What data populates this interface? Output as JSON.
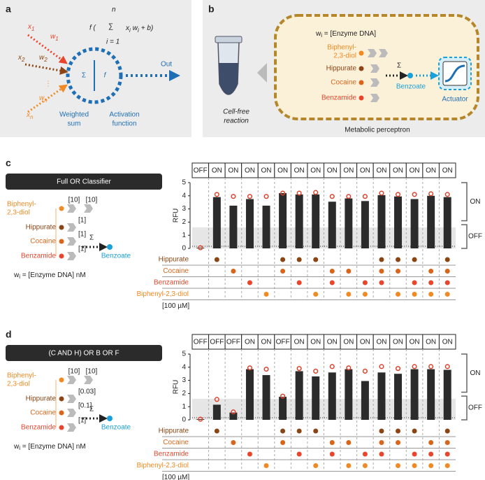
{
  "panel_a": {
    "label": "a",
    "formula": {
      "f": "f (",
      "sigma": "∑",
      "upper": "n",
      "lower": "i = 1",
      "x": "x",
      "xi": "i",
      "w": "w",
      "wi": "i",
      "tail": "+ b)"
    },
    "inputs": [
      {
        "x": "x",
        "xi": "1",
        "w": "w",
        "wi": "1"
      },
      {
        "x": "x",
        "xi": "2",
        "w": "w",
        "wi": "2"
      },
      {
        "x": "x",
        "xi": "n",
        "w": "w",
        "wi": "n"
      }
    ],
    "ellipsis": "⋮",
    "sigma": "Σ",
    "f": "f",
    "weighted_sum": [
      "Weighted",
      "sum"
    ],
    "activation": [
      "Activation",
      "function"
    ],
    "out": "Out"
  },
  "panel_b": {
    "label": "b",
    "weight_eq": {
      "w": "w",
      "sub": "i",
      "rest": " = [Enzyme DNA]"
    },
    "substrates": [
      [
        "Biphenyl-",
        "2,3-diol"
      ],
      [
        "Hippurate"
      ],
      [
        "Cocaine"
      ],
      [
        "Benzamide"
      ]
    ],
    "sigma": "Σ",
    "product": "Benzoate",
    "actuator": "Actuator",
    "reaction": [
      "Cell-free",
      "reaction"
    ],
    "caption": "Metabolic perceptron"
  },
  "panel_c_diagram": {
    "label": "c",
    "title": "Full OR Classifier",
    "substrates": [
      [
        "Biphenyl-",
        "2,3-diol"
      ],
      [
        "Hippurate"
      ],
      [
        "Cocaine"
      ],
      [
        "Benzamide"
      ]
    ],
    "weights": [
      "[10]",
      "[10]",
      "[1]",
      "[1]",
      "[1]"
    ],
    "sigma": "Σ",
    "product": "Benzoate",
    "weight_eq": {
      "w": "w",
      "sub": "i",
      "rest": " = [Enzyme DNA] nM"
    }
  },
  "panel_d_diagram": {
    "label": "d",
    "title": "(C AND H) OR B OR F",
    "substrates": [
      [
        "Biphenyl-",
        "2,3-diol"
      ],
      [
        "Hippurate"
      ],
      [
        "Cocaine"
      ],
      [
        "Benzamide"
      ]
    ],
    "weights": [
      "[10]",
      "[10]",
      "[0.03]",
      "[0.1]",
      "[1]"
    ],
    "sigma": "Σ",
    "product": "Benzoate",
    "weight_eq": {
      "w": "w",
      "sub": "i",
      "rest": " = [Enzyme DNA] nM"
    }
  },
  "chart_data": [
    {
      "type": "bar",
      "ylabel": "RFU",
      "ylim": [
        0,
        5
      ],
      "yticks": [
        0,
        1,
        2,
        3,
        4,
        5
      ],
      "color": "#2b2b2b",
      "predicted_color": "#e0402a",
      "categories": [
        "OFF",
        "ON",
        "ON",
        "ON",
        "ON",
        "ON",
        "ON",
        "ON",
        "ON",
        "ON",
        "ON",
        "ON",
        "ON",
        "ON",
        "ON",
        "ON"
      ],
      "values": [
        0.05,
        3.9,
        3.25,
        3.75,
        3.25,
        4.2,
        4.1,
        4.1,
        3.55,
        3.8,
        3.6,
        4.05,
        3.95,
        3.75,
        4.0,
        3.9
      ],
      "predicted_values": [
        0.05,
        4.1,
        3.95,
        3.95,
        3.95,
        4.2,
        4.2,
        4.25,
        3.95,
        3.95,
        3.95,
        4.2,
        4.1,
        4.1,
        4.15,
        4.1
      ],
      "input_labels": [
        "Hippurate",
        "Cocaine",
        "Benzamide",
        "Biphenyl-2,3-diol"
      ],
      "input_colors": [
        "#8b4513",
        "#d9651a",
        "#e8452c",
        "#f08a24"
      ],
      "inputs": [
        [
          false,
          true,
          false,
          false,
          false,
          true,
          true,
          true,
          false,
          false,
          false,
          true,
          true,
          true,
          false,
          true
        ],
        [
          false,
          false,
          true,
          false,
          false,
          true,
          false,
          false,
          true,
          true,
          false,
          true,
          true,
          false,
          true,
          true
        ],
        [
          false,
          false,
          false,
          true,
          false,
          false,
          true,
          false,
          true,
          false,
          true,
          true,
          false,
          true,
          true,
          true
        ],
        [
          false,
          false,
          false,
          false,
          true,
          false,
          false,
          true,
          false,
          true,
          true,
          false,
          true,
          true,
          true,
          true
        ]
      ],
      "concentration": "[100 µM]",
      "bracket_labels": [
        "ON",
        "OFF"
      ]
    },
    {
      "type": "bar",
      "ylabel": "RFU",
      "ylim": [
        0,
        5
      ],
      "yticks": [
        0,
        1,
        2,
        3,
        4,
        5
      ],
      "color": "#2b2b2b",
      "predicted_color": "#e0402a",
      "categories": [
        "OFF",
        "OFF",
        "OFF",
        "ON",
        "ON",
        "OFF",
        "ON",
        "ON",
        "ON",
        "ON",
        "ON",
        "ON",
        "ON",
        "ON",
        "ON",
        "ON"
      ],
      "values": [
        0.05,
        1.15,
        0.55,
        3.85,
        3.4,
        1.75,
        3.7,
        3.3,
        3.6,
        3.85,
        2.95,
        3.6,
        3.5,
        3.85,
        3.85,
        3.8
      ],
      "predicted_values": [
        0.05,
        1.55,
        0.6,
        3.95,
        3.85,
        1.8,
        3.9,
        3.7,
        4.05,
        3.95,
        3.7,
        4.05,
        3.9,
        4.05,
        4.05,
        4.05
      ],
      "input_labels": [
        "Hippurate",
        "Cocaine",
        "Benzamide",
        "Biphenyl-2,3-diol"
      ],
      "input_colors": [
        "#8b4513",
        "#d9651a",
        "#e8452c",
        "#f08a24"
      ],
      "inputs": [
        [
          false,
          true,
          false,
          false,
          false,
          true,
          true,
          true,
          false,
          false,
          false,
          true,
          true,
          true,
          false,
          true
        ],
        [
          false,
          false,
          true,
          false,
          false,
          true,
          false,
          false,
          true,
          true,
          false,
          true,
          true,
          false,
          true,
          true
        ],
        [
          false,
          false,
          false,
          true,
          false,
          false,
          true,
          false,
          true,
          false,
          true,
          true,
          false,
          true,
          true,
          true
        ],
        [
          false,
          false,
          false,
          false,
          true,
          false,
          false,
          true,
          false,
          true,
          true,
          false,
          true,
          true,
          true,
          true
        ]
      ],
      "concentration": "[100 µM]",
      "bracket_labels": [
        "ON",
        "OFF"
      ]
    }
  ]
}
